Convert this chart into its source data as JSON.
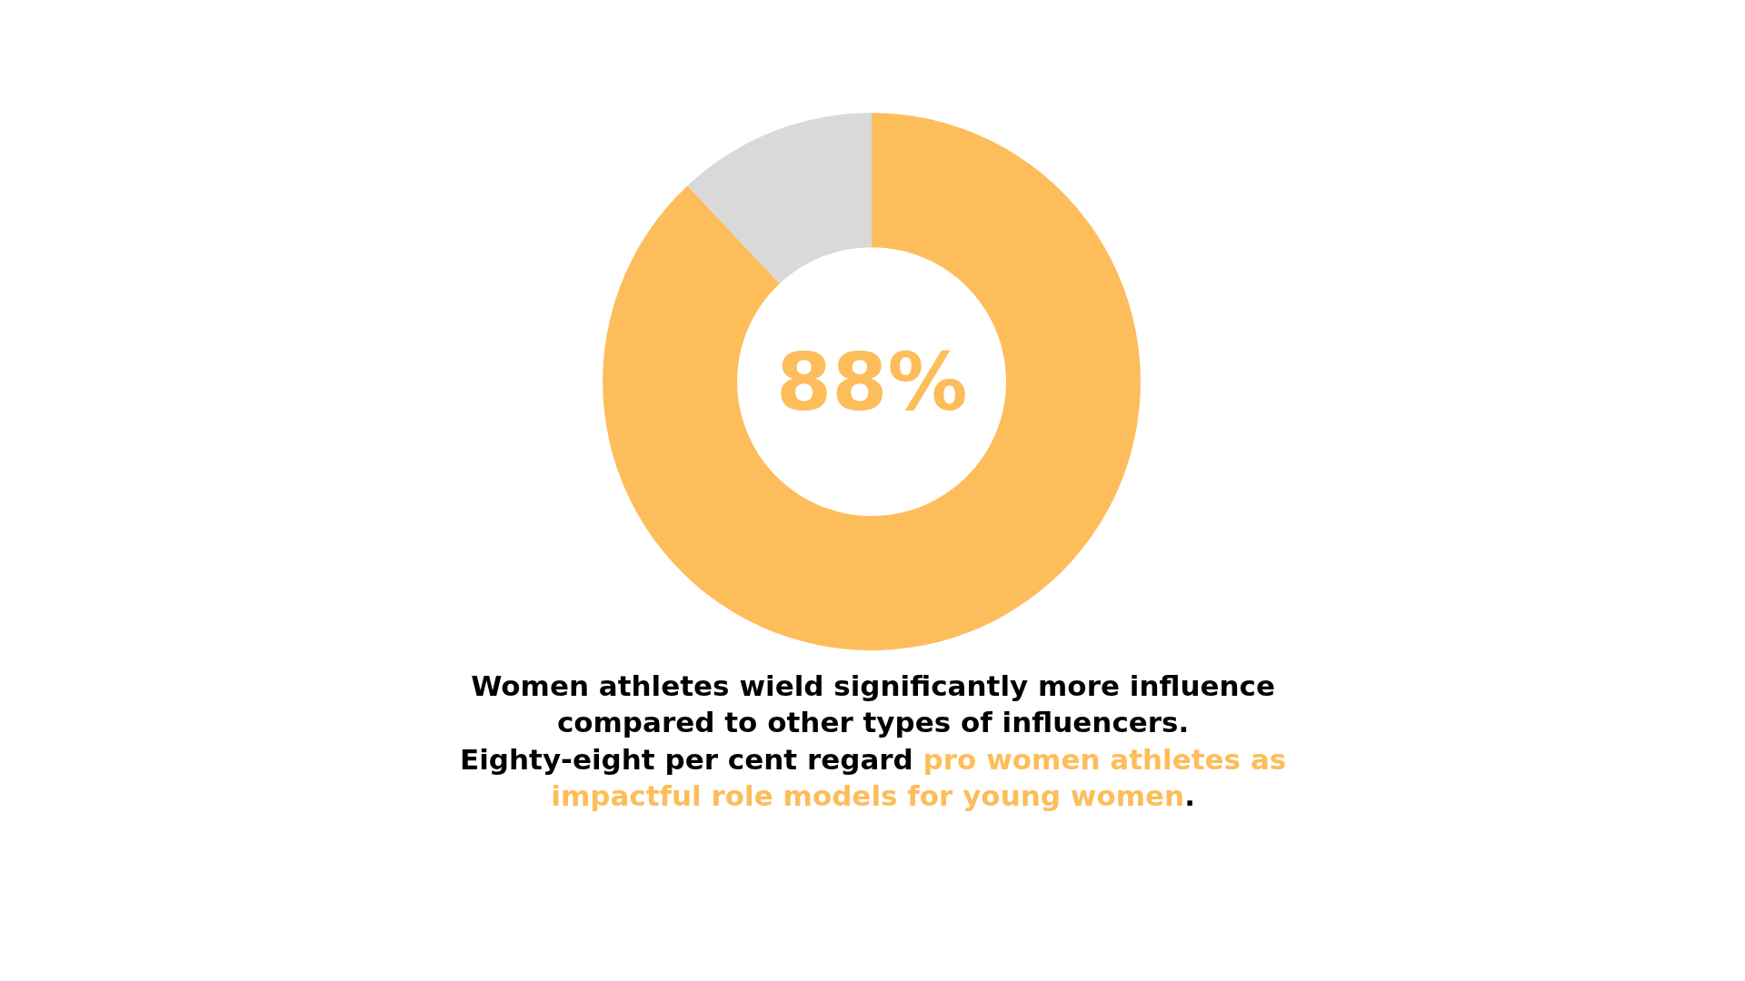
{
  "chart_data": {
    "type": "donut",
    "categories": [
      null,
      null
    ],
    "values": [
      88,
      12
    ],
    "colors": [
      "#fdbd5a",
      "#d9d9d9"
    ],
    "legend": false,
    "annotations": [
      "88%",
      "Women athletes wield significantly more influence compared to other types of influencers. Eighty-eight per cent regard ",
      "pro women athletes as impactful role models for young women",
      "."
    ]
  }
}
